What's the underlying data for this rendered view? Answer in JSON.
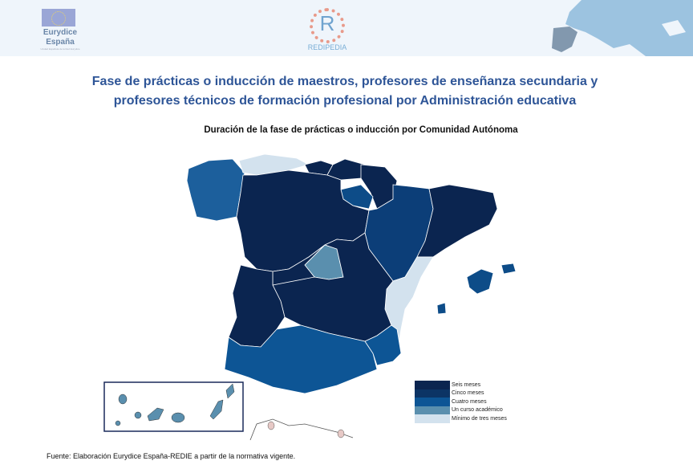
{
  "header": {
    "eurydice_line1": "Eurydice",
    "eurydice_line2": "España",
    "eurydice_sub": "Unidad Española de la Red Eurydice",
    "redipedia_letter": "R",
    "redipedia_label": "REDIPEDIA"
  },
  "title": "Fase de prácticas o inducción de maestros, profesores de enseñanza secundaria y profesores técnicos de formación profesional por Administración educativa",
  "map_title": "Duración de la fase de prácticas o inducción por Comunidad Autónoma",
  "colors": {
    "seis": "#0b2550",
    "cinco": "#0c3465",
    "cuatro": "#0d5595",
    "curso": "#5a8fae",
    "minimo": "#d3e2ee",
    "ceuta": "#e7c9c6"
  },
  "legend": [
    {
      "label": "Seis meses",
      "color": "#0b2550"
    },
    {
      "label": "Cinco meses",
      "color": "#0c3465"
    },
    {
      "label": "Cuatro meses",
      "color": "#0d5595"
    },
    {
      "label": "Un curso académico",
      "color": "#5a8fae"
    },
    {
      "label": "Mínimo de tres meses",
      "color": "#d3e2ee"
    }
  ],
  "source": "Fuente: Elaboración Eurydice España-REDIE a partir de la normativa vigente."
}
